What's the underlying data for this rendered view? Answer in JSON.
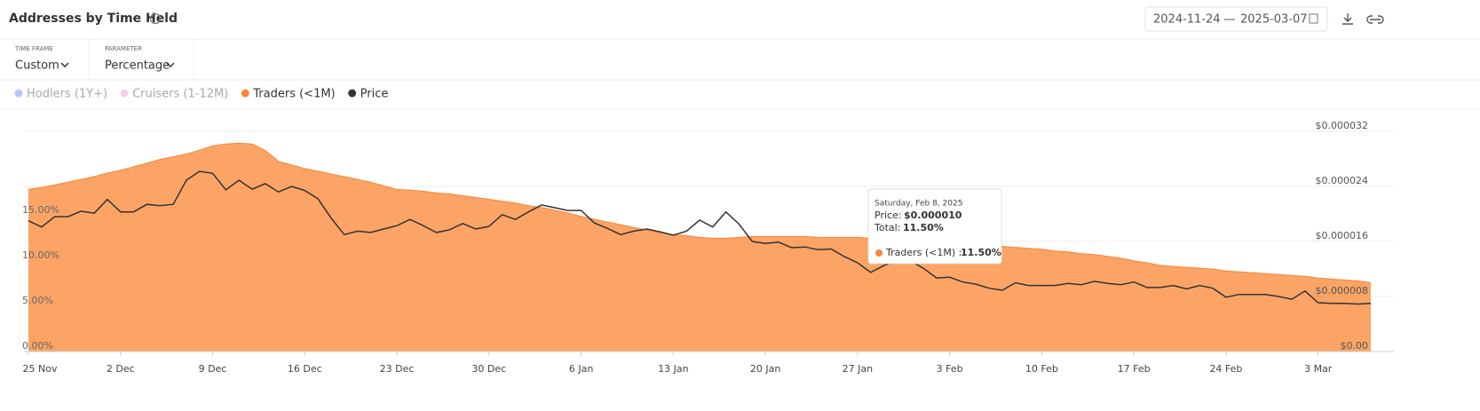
{
  "header": {
    "title": "Addresses by Time Held",
    "date_from": "2024-11-24",
    "date_to": "2025-03-07"
  },
  "controls": [
    {
      "label": "TIME FRAME",
      "value": "Custom"
    },
    {
      "label": "PARAMETER",
      "value": "Percentage"
    }
  ],
  "tooltip": {
    "date": "Saturday, Feb 8, 2025",
    "price_label": "Price:",
    "price": "$0.000010",
    "total_label": "Total:",
    "total": "11.50%",
    "series_label": "Traders (<1M) :",
    "series_value": "11.50%"
  },
  "chart_data": {
    "type": "area",
    "categories": [
      "25 Nov",
      null,
      null,
      null,
      null,
      null,
      null,
      "2 Dec",
      null,
      null,
      null,
      null,
      null,
      null,
      "9 Dec",
      null,
      null,
      null,
      null,
      null,
      null,
      "16 Dec",
      null,
      null,
      null,
      null,
      null,
      null,
      "23 Dec",
      null,
      null,
      null,
      null,
      null,
      null,
      "30 Dec",
      null,
      null,
      null,
      null,
      null,
      null,
      "6 Jan",
      null,
      null,
      null,
      null,
      null,
      null,
      "13 Jan",
      null,
      null,
      null,
      null,
      null,
      null,
      "20 Jan",
      null,
      null,
      null,
      null,
      null,
      null,
      "27 Jan",
      null,
      null,
      null,
      null,
      null,
      null,
      "3 Feb",
      null,
      null,
      null,
      null,
      null,
      null,
      "10 Feb",
      null,
      null,
      null,
      null,
      null,
      null,
      "17 Feb",
      null,
      null,
      null,
      null,
      null,
      null,
      "24 Feb",
      null,
      null,
      null,
      null,
      null,
      null,
      "3 Mar",
      null,
      null,
      null,
      null
    ],
    "series": [
      {
        "name": "Hodlers (1Y+)",
        "color": "#7b9cf0",
        "visible": false
      },
      {
        "name": "Cruisers (1-12M)",
        "color": "#f4a3d4",
        "visible": false
      },
      {
        "name": "Traders (<1M)",
        "color": "#f5873a",
        "visible": true,
        "values": [
          17.9,
          18.1,
          18.4,
          18.7,
          19.0,
          19.3,
          19.7,
          20.0,
          20.4,
          20.8,
          21.2,
          21.5,
          21.8,
          22.2,
          22.7,
          22.9,
          23.0,
          22.9,
          22.2,
          21.0,
          20.6,
          20.2,
          19.9,
          19.6,
          19.3,
          19.0,
          18.7,
          18.3,
          17.9,
          17.8,
          17.7,
          17.5,
          17.4,
          17.2,
          17.0,
          16.8,
          16.6,
          16.4,
          16.1,
          15.9,
          15.6,
          15.3,
          14.9,
          14.6,
          14.3,
          14.0,
          13.7,
          13.4,
          13.1,
          12.9,
          12.8,
          12.6,
          12.5,
          12.5,
          12.6,
          12.7,
          12.7,
          12.7,
          12.7,
          12.7,
          12.6,
          12.6,
          12.6,
          12.6,
          12.5,
          12.4,
          12.3,
          12.2,
          12.1,
          12.1,
          12.0,
          11.9,
          11.8,
          11.7,
          11.6,
          11.5,
          11.4,
          11.3,
          11.1,
          11.0,
          10.8,
          10.7,
          10.5,
          10.3,
          10.0,
          9.8,
          9.5,
          9.4,
          9.3,
          9.2,
          9.1,
          8.9,
          8.8,
          8.7,
          8.6,
          8.5,
          8.4,
          8.3,
          8.1,
          8.0,
          7.9,
          7.8,
          7.6
        ]
      },
      {
        "name": "Price",
        "color": "#333333",
        "visible": true,
        "axis": "y2",
        "values": [
          1.9e-05,
          1.81e-05,
          1.96e-05,
          1.96e-05,
          2.04e-05,
          2.01e-05,
          2.21e-05,
          2.03e-05,
          2.03e-05,
          2.14e-05,
          2.12e-05,
          2.14e-05,
          2.49e-05,
          2.62e-05,
          2.59e-05,
          2.35e-05,
          2.49e-05,
          2.36e-05,
          2.44e-05,
          2.32e-05,
          2.4e-05,
          2.34e-05,
          2.22e-05,
          1.94e-05,
          1.7e-05,
          1.75e-05,
          1.73e-05,
          1.78e-05,
          1.83e-05,
          1.92e-05,
          1.83e-05,
          1.73e-05,
          1.77e-05,
          1.86e-05,
          1.78e-05,
          1.82e-05,
          1.99e-05,
          1.92e-05,
          2.03e-05,
          2.13e-05,
          2.09e-05,
          2.05e-05,
          2.05e-05,
          1.87e-05,
          1.79e-05,
          1.7e-05,
          1.75e-05,
          1.78e-05,
          1.74e-05,
          1.69e-05,
          1.75e-05,
          1.91e-05,
          1.81e-05,
          2.03e-05,
          1.85e-05,
          1.6e-05,
          1.57e-05,
          1.59e-05,
          1.51e-05,
          1.52e-05,
          1.48e-05,
          1.49e-05,
          1.38e-05,
          1.29e-05,
          1.15e-05,
          1.25e-05,
          1.32e-05,
          1.32e-05,
          1.21e-05,
          1.07e-05,
          1.08e-05,
          1.01e-05,
          9.8e-06,
          9.2e-06,
          8.9e-06,
          1e-05,
          9.6e-06,
          9.6e-06,
          9.6e-06,
          9.9e-06,
          9.7e-06,
          1.02e-05,
          9.9e-06,
          9.7e-06,
          1.01e-05,
          9.3e-06,
          9.3e-06,
          9.6e-06,
          9.1e-06,
          9.6e-06,
          9.2e-06,
          7.9e-06,
          8.3e-06,
          8.3e-06,
          8.3e-06,
          8e-06,
          7.6e-06,
          8.8e-06,
          7.1e-06,
          7e-06,
          7e-06,
          6.9e-06,
          7e-06
        ]
      }
    ],
    "ylim": [
      0,
      24.3
    ],
    "yticks": [
      {
        "value": 0,
        "label": "0.00%"
      },
      {
        "value": 5,
        "label": "5.00%"
      },
      {
        "value": 10,
        "label": "10.00%"
      },
      {
        "value": 15,
        "label": "15.00%"
      }
    ],
    "y2lim": [
      0,
      3.2e-05
    ],
    "y2ticks": [
      {
        "value": 0,
        "label": "$0.00"
      },
      {
        "value": 8e-06,
        "label": "$0.000008"
      },
      {
        "value": 1.6e-05,
        "label": "$0.000016"
      },
      {
        "value": 2.4e-05,
        "label": "$0.000024"
      },
      {
        "value": 3.2e-05,
        "label": "$0.000032"
      }
    ],
    "grid": true
  }
}
